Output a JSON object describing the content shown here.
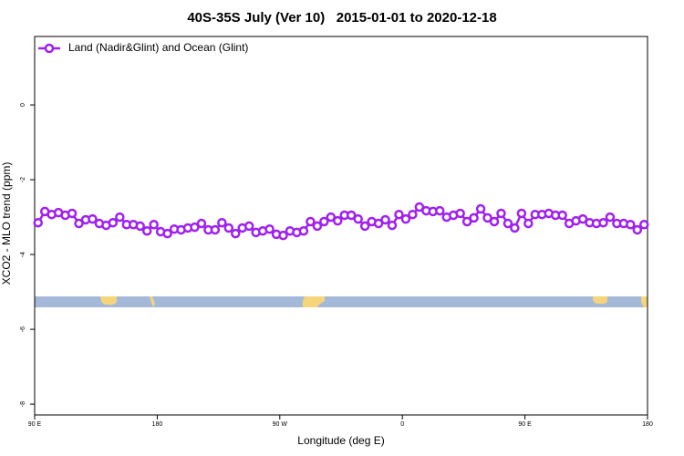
{
  "chart_data": {
    "type": "line",
    "title": "40S-35S July (Ver 10)   2015-01-01 to 2020-12-18",
    "x_label": "Longitude (deg E)",
    "y_label": "XCO2 - MLO trend (ppm)",
    "x": [
      92.5,
      97.5,
      102.5,
      107.5,
      112.5,
      117.5,
      122.5,
      127.5,
      132.5,
      137.5,
      142.5,
      147.5,
      152.5,
      157.5,
      162.5,
      167.5,
      172.5,
      177.5,
      182.5,
      187.5,
      192.5,
      197.5,
      202.5,
      207.5,
      212.5,
      217.5,
      222.5,
      227.5,
      232.5,
      237.5,
      242.5,
      247.5,
      252.5,
      257.5,
      262.5,
      267.5,
      272.5,
      277.5,
      282.5,
      287.5,
      292.5,
      297.5,
      302.5,
      307.5,
      312.5,
      317.5,
      322.5,
      327.5,
      332.5,
      337.5,
      342.5,
      347.5,
      352.5,
      357.5,
      362.5,
      367.5,
      372.5,
      377.5,
      382.5,
      387.5,
      392.5,
      397.5,
      402.5,
      407.5,
      412.5,
      417.5,
      422.5,
      427.5,
      432.5,
      437.5,
      442.5,
      447.5,
      452.5,
      457.5,
      462.5,
      467.5,
      472.5,
      477.5,
      482.5,
      487.5,
      492.5,
      497.5,
      502.5,
      507.5,
      512.5,
      517.5,
      522.5,
      527.5,
      532.5,
      537.5
    ],
    "series": [
      {
        "name": "Land (Nadir&Glint) and Ocean (Glint)",
        "color": "#a020f0",
        "values": [
          -3.15,
          -2.85,
          -2.93,
          -2.88,
          -2.95,
          -2.9,
          -3.17,
          -3.07,
          -3.05,
          -3.17,
          -3.22,
          -3.15,
          -3.0,
          -3.2,
          -3.2,
          -3.24,
          -3.37,
          -3.2,
          -3.39,
          -3.44,
          -3.32,
          -3.34,
          -3.29,
          -3.27,
          -3.17,
          -3.34,
          -3.34,
          -3.15,
          -3.29,
          -3.44,
          -3.29,
          -3.24,
          -3.41,
          -3.37,
          -3.32,
          -3.46,
          -3.49,
          -3.37,
          -3.41,
          -3.37,
          -3.12,
          -3.24,
          -3.12,
          -3.0,
          -3.1,
          -2.95,
          -2.95,
          -3.05,
          -3.24,
          -3.12,
          -3.17,
          -3.07,
          -3.22,
          -2.93,
          -3.05,
          -2.93,
          -2.73,
          -2.83,
          -2.85,
          -2.83,
          -3.0,
          -2.95,
          -2.9,
          -3.12,
          -3.02,
          -2.78,
          -3.02,
          -3.12,
          -2.9,
          -3.17,
          -3.29,
          -2.9,
          -3.17,
          -2.93,
          -2.93,
          -2.9,
          -2.95,
          -2.95,
          -3.17,
          -3.1,
          -3.05,
          -3.15,
          -3.17,
          -3.15,
          -3.0,
          -3.17,
          -3.17,
          -3.2,
          -3.34,
          -3.2
        ]
      }
    ],
    "xlim": [
      90,
      540
    ],
    "xticks": [
      {
        "value": 90,
        "label": "90 E"
      },
      180,
      {
        "value": 270,
        "label": "90 W"
      },
      {
        "value": 360,
        "label": "0"
      },
      {
        "value": 450,
        "label": "90 E"
      },
      {
        "value": 540,
        "label": "180"
      }
    ],
    "ylim": [
      -8.29,
      1.83
    ],
    "yticks": [
      0,
      -2,
      -4,
      -6,
      -8
    ],
    "legend": "top-left"
  }
}
